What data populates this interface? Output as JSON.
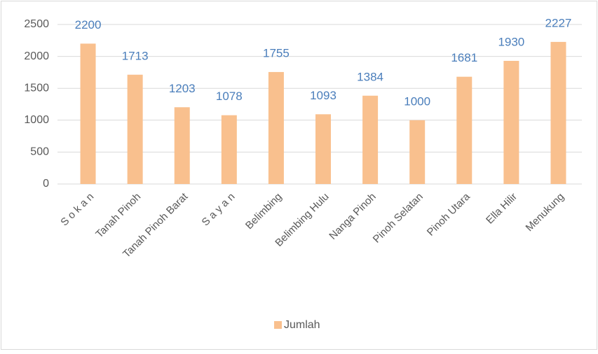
{
  "chart_data": {
    "type": "bar",
    "categories": [
      "S o k a n",
      "Tanah Pinoh",
      "Tanah Pinoh Barat",
      "S a y a n",
      "Belimbing",
      "Belimbing Hulu",
      "Nanga Pinoh",
      "Pinoh Selatan",
      "Pinoh Utara",
      "Ella Hilir",
      "Menukung"
    ],
    "series": [
      {
        "name": "Jumlah",
        "color": "#f9c08e",
        "values": [
          2200,
          1713,
          1203,
          1078,
          1755,
          1093,
          1384,
          1000,
          1681,
          1930,
          2227
        ]
      }
    ],
    "ylim": [
      0,
      2500
    ],
    "yticks": [
      0,
      500,
      1000,
      1500,
      2000,
      2500
    ],
    "grid": true,
    "label_color": "#4a7ebb",
    "legend": "bottom"
  }
}
